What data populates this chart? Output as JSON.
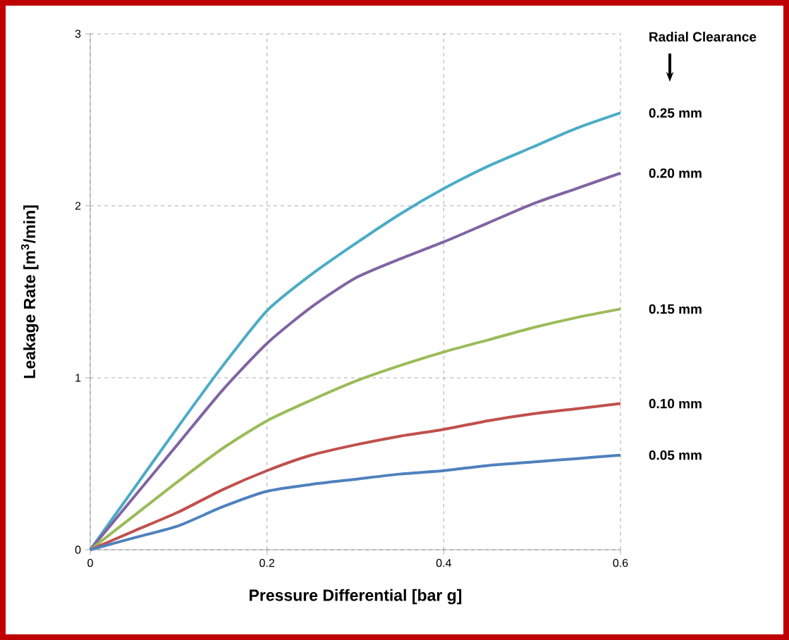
{
  "chart_data": {
    "type": "line",
    "xlabel": "Pressure Differential [bar g]",
    "ylabel": "Leakage Rate [m$^{3}$/min]",
    "legend_title": "Radial Clearance",
    "x": [
      0,
      0.05,
      0.1,
      0.15,
      0.2,
      0.25,
      0.3,
      0.35,
      0.4,
      0.45,
      0.5,
      0.55,
      0.6
    ],
    "series": [
      {
        "name": "0.25 mm",
        "color": "#4bacc6",
        "values": [
          0,
          0.36,
          0.72,
          1.07,
          1.39,
          1.6,
          1.78,
          1.95,
          2.1,
          2.23,
          2.34,
          2.45,
          2.54
        ]
      },
      {
        "name": "0.20 mm",
        "color": "#8064a2",
        "values": [
          0,
          0.31,
          0.62,
          0.93,
          1.2,
          1.41,
          1.58,
          1.69,
          1.79,
          1.9,
          2.01,
          2.1,
          2.19
        ]
      },
      {
        "name": "0.15 mm",
        "color": "#9bbb59",
        "values": [
          0,
          0.2,
          0.4,
          0.59,
          0.75,
          0.87,
          0.98,
          1.07,
          1.15,
          1.22,
          1.29,
          1.35,
          1.4
        ]
      },
      {
        "name": "0.10 mm",
        "color": "#c0504d",
        "values": [
          0,
          0.11,
          0.22,
          0.35,
          0.46,
          0.55,
          0.61,
          0.66,
          0.7,
          0.75,
          0.79,
          0.82,
          0.85
        ]
      },
      {
        "name": "0.05 mm",
        "color": "#4f81bd",
        "values": [
          0,
          0.07,
          0.14,
          0.25,
          0.34,
          0.38,
          0.41,
          0.44,
          0.46,
          0.49,
          0.51,
          0.53,
          0.55
        ]
      }
    ],
    "xlim": [
      0,
      0.6
    ],
    "ylim": [
      0,
      3
    ],
    "xticks": [
      0,
      0.2,
      0.4,
      0.6
    ],
    "yticks": [
      0,
      1,
      2,
      3
    ],
    "grid": true,
    "marker": "none",
    "line_style": "solid"
  }
}
